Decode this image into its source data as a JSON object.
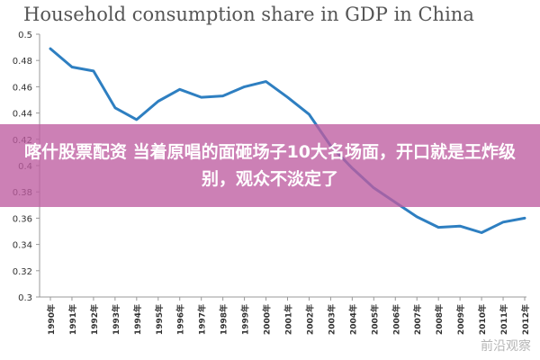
{
  "chart_data": {
    "type": "line",
    "title": "Household consumption share in GDP in China",
    "x": [
      "1990年",
      "1991年",
      "1992年",
      "1993年",
      "1994年",
      "1995年",
      "1996年",
      "1997年",
      "1998年",
      "1999年",
      "2000年",
      "2001年",
      "2002年",
      "2003年",
      "2004年",
      "2005年",
      "2006年",
      "2007年",
      "2008年",
      "2009年",
      "2010年",
      "2011年",
      "2012年"
    ],
    "series": [
      {
        "values": [
          0.489,
          0.475,
          0.472,
          0.444,
          0.435,
          0.449,
          0.458,
          0.452,
          0.453,
          0.46,
          0.464,
          0.452,
          0.439,
          0.415,
          0.398,
          0.383,
          0.372,
          0.361,
          0.353,
          0.354,
          0.349,
          0.357,
          0.36
        ]
      }
    ],
    "ylim": [
      0.3,
      0.5
    ],
    "yticks": [
      0.3,
      0.32,
      0.34,
      0.36,
      0.38,
      0.4,
      0.42,
      0.44,
      0.46,
      0.48,
      0.5
    ],
    "ytick_labels": [
      "0.3",
      "0.32",
      "0.34",
      "0.36",
      "0.38",
      "0.4",
      "0.42",
      "0.44",
      "0.46",
      "0.48",
      "0.5"
    ],
    "line_color": "#2e7fc1",
    "axis_color": "#999999",
    "grid": false
  },
  "overlay": {
    "text": "喀什股票配资 当着原唱的面砸场子10大名场面，开口就是王炸级别，观众不淡定了",
    "color": "#be5ca0"
  },
  "watermark": {
    "text": "前沿观察"
  }
}
